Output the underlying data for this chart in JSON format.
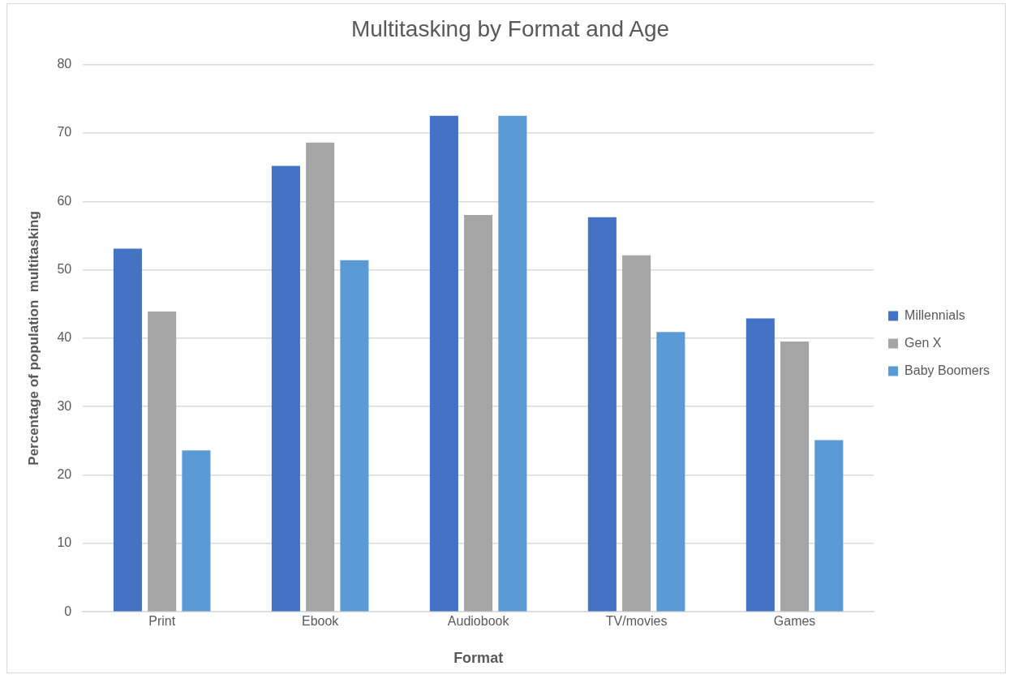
{
  "chart_data": {
    "type": "bar",
    "title": "Multitasking by Format and Age",
    "xlabel": "Format",
    "ylabel": "Percentage of population  multitasking",
    "categories": [
      "Print",
      "Ebook",
      "Audiobook",
      "TV/movies",
      "Games"
    ],
    "series": [
      {
        "name": "Millennials",
        "color": "#4472c4",
        "values": [
          53.1,
          65.2,
          72.5,
          57.7,
          42.9
        ]
      },
      {
        "name": "Gen X",
        "color": "#a5a5a5",
        "values": [
          43.9,
          68.6,
          58,
          52.1,
          39.5
        ]
      },
      {
        "name": "Baby Boomers",
        "color": "#5b9bd5",
        "values": [
          23.6,
          51.4,
          72.5,
          40.9,
          25.1
        ]
      }
    ],
    "ylim": [
      0,
      80
    ],
    "yticks": [
      0,
      10,
      20,
      30,
      40,
      50,
      60,
      70,
      80
    ],
    "grid": "y",
    "legend": "right"
  }
}
